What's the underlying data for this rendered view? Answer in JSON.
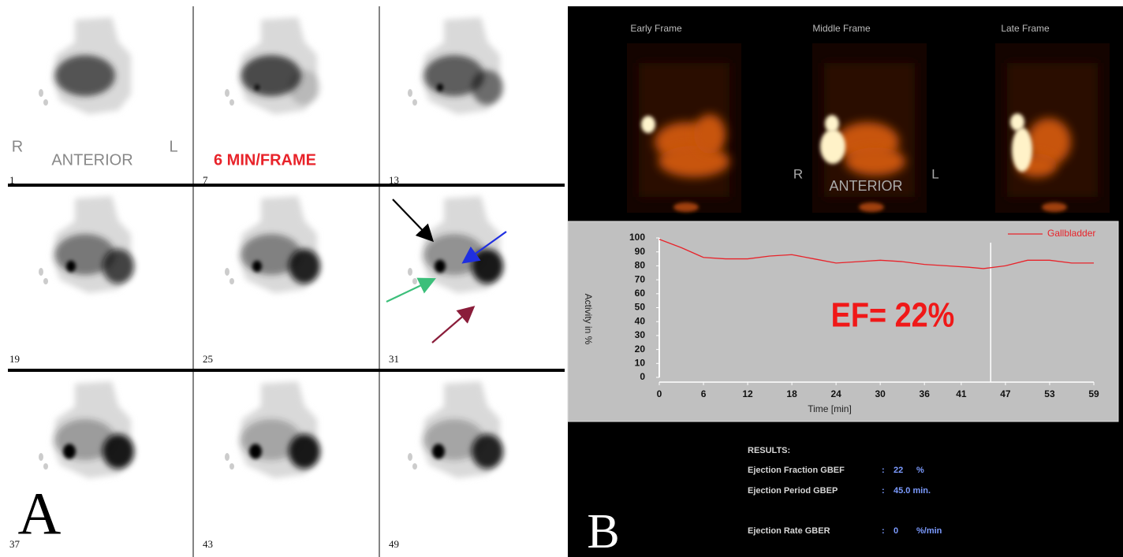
{
  "panel_a": {
    "label": "A",
    "right": "R",
    "view": "ANTERIOR",
    "left": "L",
    "rate": "6 MIN/FRAME",
    "frames": [
      1,
      7,
      13,
      19,
      25,
      31,
      37,
      43,
      49
    ]
  },
  "panel_b": {
    "label": "B",
    "frames": [
      "Early Frame",
      "Middle Frame",
      "Late Frame"
    ],
    "right": "R",
    "view": "ANTERIOR",
    "left": "L"
  },
  "chart_data": {
    "type": "line",
    "x_label": "Time [min]",
    "y_label": "Activity in %",
    "annotation": "EF= 22%",
    "xlim": [
      0,
      59
    ],
    "ylim": [
      0,
      100
    ],
    "xticks": [
      0,
      6,
      12,
      18,
      24,
      30,
      36,
      41,
      47,
      53,
      59
    ],
    "yticks": [
      0,
      10,
      20,
      30,
      40,
      50,
      60,
      70,
      80,
      90,
      100
    ],
    "marker_x": 45,
    "series": [
      {
        "name": "Gallbladder",
        "color": "#e8232a",
        "x": [
          0,
          3,
          6,
          9,
          12,
          15,
          18,
          21,
          24,
          27,
          30,
          33,
          36,
          39,
          42,
          44,
          47,
          50,
          53,
          56,
          59
        ],
        "values": [
          99,
          93,
          86,
          85,
          85,
          87,
          88,
          85,
          82,
          83,
          84,
          83,
          81,
          80,
          79,
          78,
          80,
          84,
          84,
          82,
          82
        ]
      }
    ]
  },
  "results": {
    "title": "RESULTS:",
    "separator": ":",
    "rows": [
      {
        "label": "Ejection Fraction GBEF",
        "value": "22",
        "unit": "%"
      },
      {
        "label": "Ejection Period GBEP",
        "value": "45.0 min."
      },
      {
        "label": "Ejection Rate GBER",
        "value": "0",
        "unit": "%/min"
      }
    ]
  }
}
